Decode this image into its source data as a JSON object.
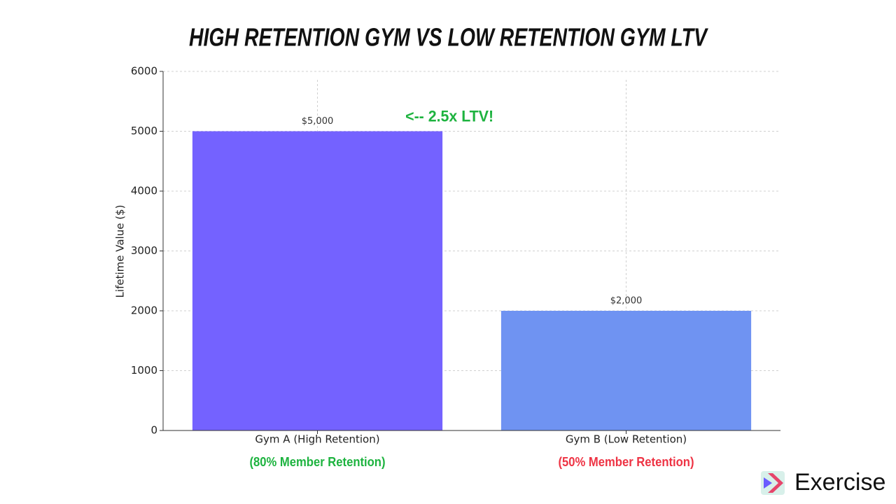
{
  "chart_data": {
    "type": "bar",
    "title": "HIGH RETENTION GYM VS LOW RETENTION GYM LTV",
    "y_label": "Lifetime Value ($)",
    "categories": [
      "Gym A (High Retention)",
      "Gym B (Low Retention)"
    ],
    "values": [
      5000,
      2000
    ],
    "value_labels": [
      "$5,000",
      "$2,000"
    ],
    "colors": [
      "#7462ff",
      "#6f93f2"
    ],
    "category_notes": [
      {
        "text": "(80% Member Retention)",
        "color": "#1db33f"
      },
      {
        "text": "(50% Member Retention)",
        "color": "#ee3344"
      }
    ],
    "annotation": {
      "text": "<-- 2.5x LTV!",
      "color": "#1db33f"
    },
    "ylim": [
      0,
      6000
    ],
    "yticks": [
      0,
      1000,
      2000,
      3000,
      4000,
      5000,
      6000
    ],
    "grid": true
  },
  "logo": {
    "text": "Exercise"
  }
}
